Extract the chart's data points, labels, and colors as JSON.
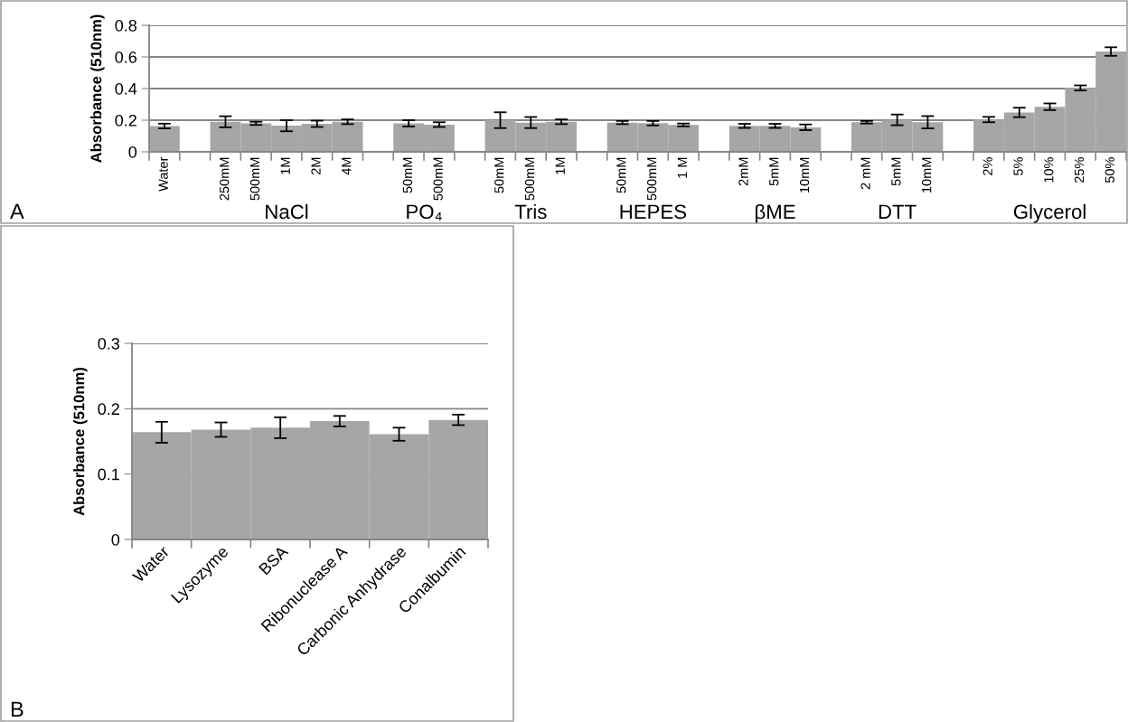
{
  "chart_data": [
    {
      "type": "bar",
      "ylabel": "Absorbance (510nm)",
      "categories": [
        "Water",
        null,
        "250mM",
        "500mM",
        "1M",
        "2M",
        "4M",
        null,
        "50mM",
        "500mM",
        null,
        "50mM",
        "500mM",
        "1M",
        null,
        "50mM",
        "500mM",
        "1 M",
        null,
        "2mM",
        "5mM",
        "10mM",
        null,
        "2 mM",
        "5mM",
        "10mM",
        null,
        "2%",
        "5%",
        "10%",
        "25%",
        "50%"
      ],
      "series": [
        {
          "color": "#a6a6a6",
          "values": [
            0.163,
            null,
            0.19,
            0.18,
            0.165,
            0.177,
            0.19,
            null,
            0.18,
            0.172,
            null,
            0.2,
            0.185,
            0.19,
            null,
            0.185,
            0.181,
            0.17,
            null,
            0.164,
            0.164,
            0.155,
            null,
            0.187,
            0.202,
            0.187,
            null,
            0.204,
            0.249,
            0.285,
            0.404,
            0.634
          ],
          "errors": [
            0.015,
            null,
            0.035,
            0.01,
            0.035,
            0.02,
            0.015,
            null,
            0.02,
            0.015,
            null,
            0.05,
            0.035,
            0.015,
            null,
            0.01,
            0.014,
            0.009,
            null,
            0.013,
            0.013,
            0.018,
            null,
            0.008,
            0.034,
            0.039,
            null,
            0.017,
            0.03,
            0.021,
            0.016,
            0.027
          ]
        }
      ],
      "ylim": [
        0,
        0.8
      ],
      "yticks": [
        0,
        0.2,
        0.4,
        0.6,
        0.8
      ],
      "grid": "y",
      "legend": false,
      "annotations": [
        "A",
        "NaCl",
        "PO₄",
        "Tris",
        "HEPES",
        "βME",
        "DTT",
        "Glycerol"
      ]
    },
    {
      "type": "bar",
      "ylabel": "Absorbance (510nm)",
      "categories": [
        "Water",
        "Lysozyme",
        "BSA",
        "Ribonuclease A",
        "Carbonic Anhydrase",
        "Conalbumin"
      ],
      "series": [
        {
          "color": "#a6a6a6",
          "values": [
            0.164,
            0.168,
            0.171,
            0.181,
            0.161,
            0.183
          ],
          "errors": [
            0.016,
            0.011,
            0.016,
            0.008,
            0.01,
            0.008
          ]
        }
      ],
      "ylim": [
        0,
        0.3
      ],
      "yticks": [
        0,
        0.1,
        0.2,
        0.3
      ],
      "grid": "y",
      "legend": false,
      "annotations": [
        "B"
      ]
    }
  ]
}
